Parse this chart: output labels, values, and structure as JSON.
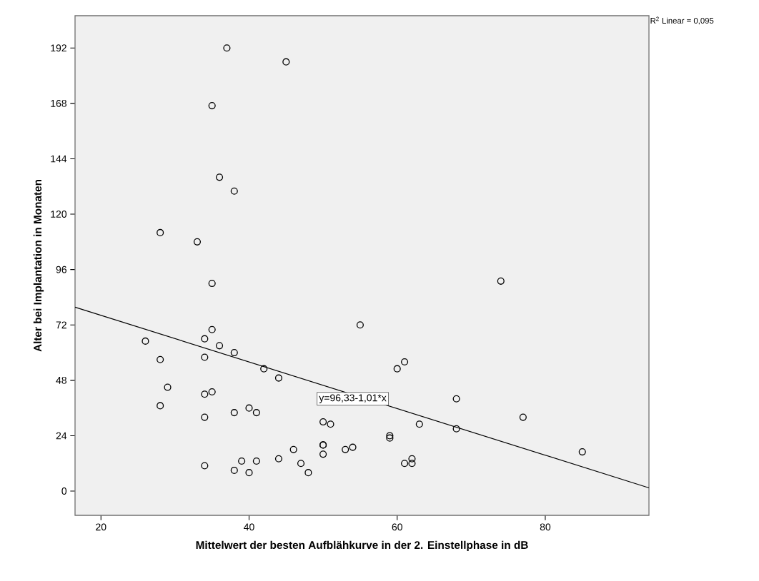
{
  "chart_data": {
    "type": "scatter",
    "xlabel": "Mittelwert der besten Aufblähkurve in der 2. Einstellphase in dB",
    "ylabel": "Alter bei Implantation in Monaten",
    "xlim": [
      16.5,
      94
    ],
    "ylim": [
      -10.5,
      206
    ],
    "xticks": [
      20,
      40,
      60,
      80
    ],
    "yticks": [
      0,
      24,
      48,
      72,
      96,
      120,
      144,
      168,
      192
    ],
    "marker": "circle",
    "annotations": [
      "R$^{2}$ Linear = 0,095",
      {
        "text": "y=96,33-1,01*x",
        "x": 54,
        "y": 40
      }
    ],
    "series": [
      {
        "color": "#000000",
        "x": [
          37,
          45,
          35,
          36,
          38,
          28,
          33,
          35,
          74,
          55,
          26,
          35,
          34,
          36,
          38,
          28,
          34,
          42,
          44,
          60,
          61,
          29,
          35,
          34,
          28,
          40,
          41,
          38,
          34,
          50,
          51,
          50,
          50,
          50,
          53,
          54,
          46,
          44,
          47,
          48,
          34,
          38,
          39,
          40,
          41,
          59,
          59,
          63,
          68,
          68,
          77,
          85,
          61,
          62,
          62
        ],
        "values": [
          192,
          186,
          167,
          136,
          130,
          112,
          108,
          90,
          91,
          72,
          65,
          70,
          66,
          63,
          60,
          57,
          58,
          53,
          49,
          53,
          56,
          45,
          43,
          42,
          37,
          36,
          34,
          34,
          32,
          30,
          29,
          20,
          20,
          16,
          18,
          19,
          18,
          14,
          12,
          8,
          11,
          9,
          13,
          8,
          13,
          24,
          23,
          29,
          40,
          27,
          32,
          17,
          12,
          14,
          12
        ]
      },
      {
        "type": "line",
        "color": "#000000",
        "marker": "none",
        "x": [
          16.5,
          94
        ],
        "values": [
          79.7,
          1.4
        ]
      }
    ]
  }
}
